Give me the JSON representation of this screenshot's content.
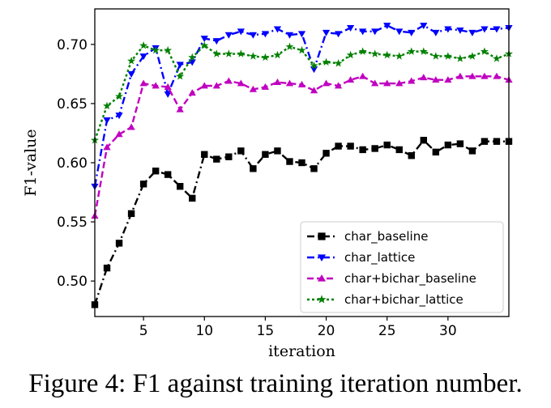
{
  "chart_data": {
    "type": "line",
    "title": "",
    "xlabel": "iteration",
    "ylabel": "F1-value",
    "xlim": [
      1,
      35
    ],
    "ylim": [
      0.47,
      0.73
    ],
    "xticks": [
      5,
      10,
      15,
      20,
      25,
      30
    ],
    "yticks": [
      0.5,
      0.55,
      0.6,
      0.65,
      0.7
    ],
    "xtick_labels": [
      "5",
      "10",
      "15",
      "20",
      "25",
      "30"
    ],
    "ytick_labels": [
      "0.50",
      "0.55",
      "0.60",
      "0.65",
      "0.70"
    ],
    "grid": false,
    "legend_position": "lower-right",
    "x": [
      1,
      2,
      3,
      4,
      5,
      6,
      7,
      8,
      9,
      10,
      11,
      12,
      13,
      14,
      15,
      16,
      17,
      18,
      19,
      20,
      21,
      22,
      23,
      24,
      25,
      26,
      27,
      28,
      29,
      30,
      31,
      32,
      33,
      34,
      35
    ],
    "series": [
      {
        "name": "char_baseline",
        "color": "#000000",
        "marker": "square",
        "dash": "dashdot",
        "values": [
          0.48,
          0.511,
          0.532,
          0.557,
          0.582,
          0.593,
          0.59,
          0.58,
          0.57,
          0.607,
          0.603,
          0.605,
          0.61,
          0.595,
          0.607,
          0.61,
          0.601,
          0.6,
          0.595,
          0.608,
          0.614,
          0.614,
          0.611,
          0.612,
          0.615,
          0.611,
          0.606,
          0.619,
          0.609,
          0.615,
          0.616,
          0.61,
          0.618,
          0.618,
          0.618
        ]
      },
      {
        "name": "char_lattice",
        "color": "#0000ff",
        "marker": "triangle-down",
        "dash": "dashdot",
        "values": [
          0.58,
          0.636,
          0.64,
          0.675,
          0.69,
          0.697,
          0.658,
          0.683,
          0.685,
          0.705,
          0.703,
          0.708,
          0.711,
          0.708,
          0.709,
          0.713,
          0.708,
          0.709,
          0.679,
          0.71,
          0.709,
          0.714,
          0.711,
          0.711,
          0.716,
          0.711,
          0.71,
          0.716,
          0.71,
          0.713,
          0.712,
          0.71,
          0.713,
          0.713,
          0.714
        ]
      },
      {
        "name": "char+bichar_baseline",
        "color": "#c000c0",
        "marker": "triangle-up",
        "dash": "dashed",
        "values": [
          0.555,
          0.613,
          0.624,
          0.63,
          0.667,
          0.665,
          0.664,
          0.645,
          0.659,
          0.665,
          0.665,
          0.669,
          0.667,
          0.662,
          0.664,
          0.668,
          0.667,
          0.666,
          0.661,
          0.667,
          0.665,
          0.67,
          0.673,
          0.667,
          0.667,
          0.667,
          0.669,
          0.672,
          0.67,
          0.67,
          0.673,
          0.673,
          0.673,
          0.673,
          0.67
        ]
      },
      {
        "name": "char+bichar_lattice",
        "color": "#008000",
        "marker": "star",
        "dash": "dotted",
        "values": [
          0.619,
          0.648,
          0.656,
          0.686,
          0.699,
          0.695,
          0.695,
          0.673,
          0.689,
          0.699,
          0.692,
          0.692,
          0.692,
          0.69,
          0.689,
          0.691,
          0.698,
          0.695,
          0.682,
          0.685,
          0.684,
          0.691,
          0.694,
          0.692,
          0.691,
          0.69,
          0.694,
          0.694,
          0.69,
          0.69,
          0.688,
          0.69,
          0.694,
          0.688,
          0.692
        ]
      }
    ]
  },
  "figure": {
    "caption": "Figure 4: F1 against training iteration number."
  }
}
